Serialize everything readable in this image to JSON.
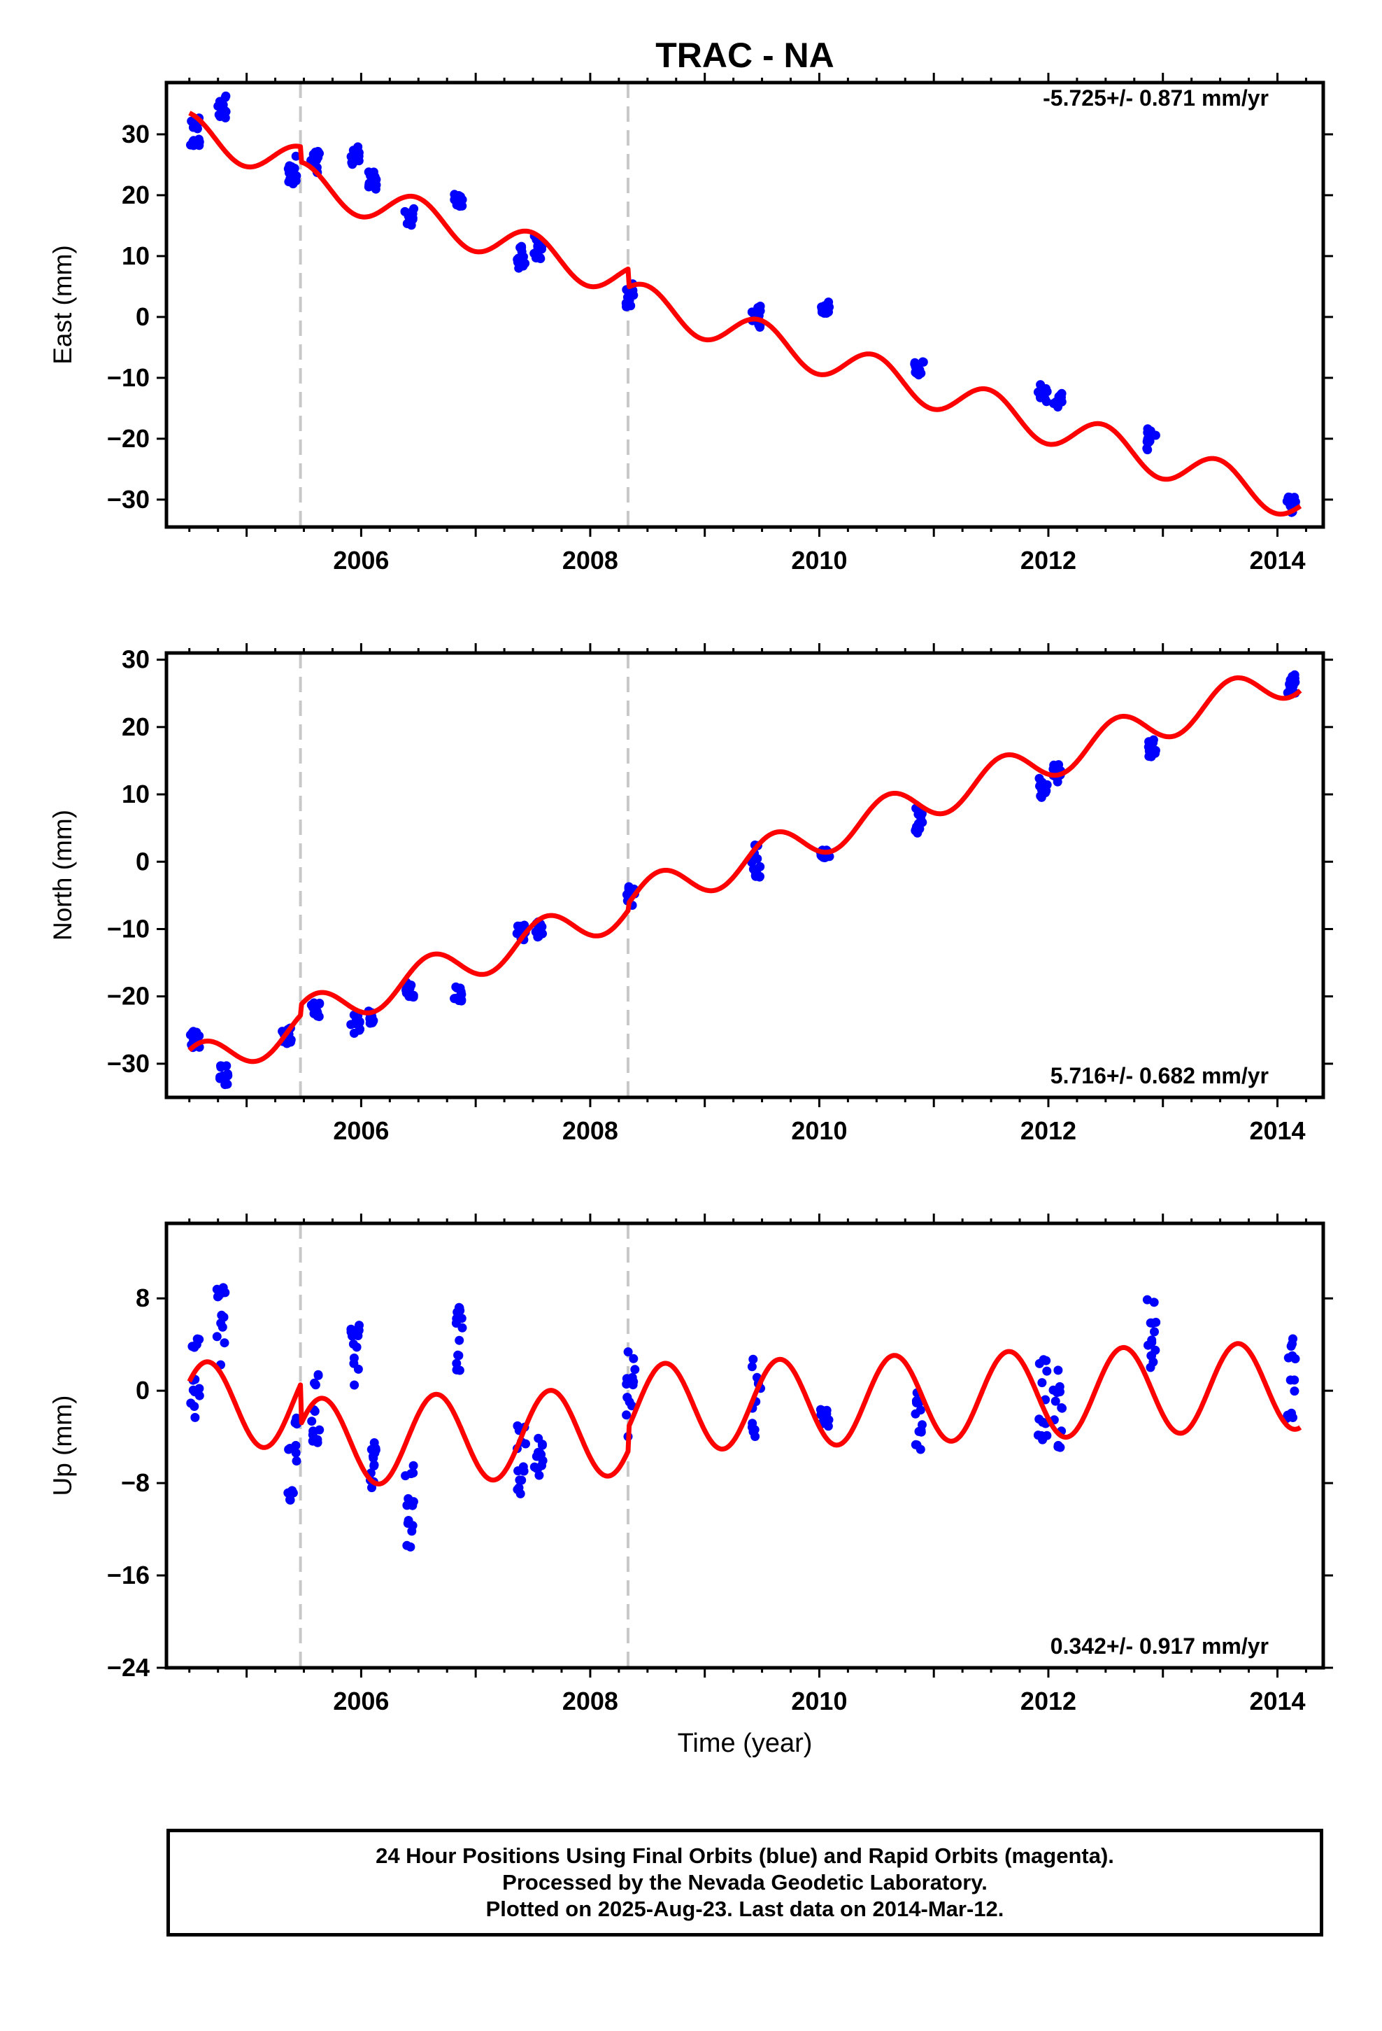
{
  "chart_data": {
    "type": "scatter",
    "title": "TRAC - NA",
    "xlabel": "Time (year)",
    "x_ticks": [
      "2006",
      "2008",
      "2010",
      "2012",
      "2014"
    ],
    "xlim": [
      2004.3,
      2014.4
    ],
    "vlines": [
      2005.47,
      2008.33
    ],
    "colors": {
      "data": "#0000ff",
      "model": "#ff0000",
      "vline": "#c8c8c8"
    },
    "panels": [
      {
        "ylabel": "East (mm)",
        "ylim": [
          -34.5,
          38.5
        ],
        "y_ticks": [
          30,
          20,
          10,
          0,
          -10,
          -20,
          -30
        ],
        "rate": "-5.725+/- 0.871 mm/yr",
        "rate_position": "top-right",
        "slope": -5.725,
        "model_offsets": [
          [
            2004.3,
            0
          ],
          [
            2005.47,
            -2.5
          ],
          [
            2008.33,
            -3
          ]
        ],
        "model_anchor": [
          2004.5,
          33.5
        ],
        "annual_amp": 3.0,
        "annual_phase": 1.7,
        "scatter_clusters": [
          [
            2004.55,
            30.5,
            2.5
          ],
          [
            2004.78,
            34.5,
            2.0
          ],
          [
            2005.4,
            24.0,
            2.5
          ],
          [
            2005.6,
            26.0,
            2.5
          ],
          [
            2005.95,
            26.5,
            1.5
          ],
          [
            2006.1,
            22.5,
            1.5
          ],
          [
            2006.42,
            16.5,
            1.5
          ],
          [
            2006.85,
            19.0,
            1.2
          ],
          [
            2007.4,
            10.0,
            2.0
          ],
          [
            2007.55,
            11.5,
            2.0
          ],
          [
            2008.35,
            3.5,
            2.0
          ],
          [
            2009.45,
            0.0,
            1.8
          ],
          [
            2010.05,
            1.5,
            1.0
          ],
          [
            2010.87,
            -8.5,
            1.5
          ],
          [
            2011.95,
            -12.5,
            1.5
          ],
          [
            2012.08,
            -13.5,
            1.5
          ],
          [
            2012.9,
            -20.0,
            2.0
          ],
          [
            2014.12,
            -31.0,
            1.5
          ]
        ]
      },
      {
        "ylabel": "North (mm)",
        "ylim": [
          -35.0,
          31.0
        ],
        "y_ticks": [
          30,
          20,
          10,
          0,
          -10,
          -20,
          -30
        ],
        "rate": "5.716+/- 0.682 mm/yr",
        "rate_position": "bottom-right",
        "slope": 5.716,
        "model_offsets": [
          [
            2004.3,
            0
          ],
          [
            2005.47,
            1.5
          ],
          [
            2008.33,
            1.0
          ]
        ],
        "model_anchor": [
          2004.5,
          -28.0
        ],
        "annual_amp": 2.8,
        "annual_phase": 0.9,
        "scatter_clusters": [
          [
            2004.55,
            -26.5,
            1.8
          ],
          [
            2004.8,
            -32.0,
            2.0
          ],
          [
            2005.35,
            -26.0,
            1.5
          ],
          [
            2005.6,
            -22.0,
            1.2
          ],
          [
            2005.95,
            -24.0,
            1.5
          ],
          [
            2006.1,
            -23.0,
            1.0
          ],
          [
            2006.42,
            -19.0,
            1.5
          ],
          [
            2006.85,
            -19.5,
            1.2
          ],
          [
            2007.4,
            -10.5,
            1.2
          ],
          [
            2007.55,
            -10.0,
            1.2
          ],
          [
            2008.35,
            -5.0,
            1.5
          ],
          [
            2009.45,
            0.0,
            2.5
          ],
          [
            2010.05,
            1.0,
            0.8
          ],
          [
            2010.87,
            6.0,
            2.0
          ],
          [
            2011.95,
            11.0,
            1.5
          ],
          [
            2012.08,
            13.0,
            1.5
          ],
          [
            2012.9,
            17.0,
            1.5
          ],
          [
            2014.12,
            26.5,
            1.6
          ]
        ]
      },
      {
        "ylabel": "Up (mm)",
        "ylim": [
          -24.0,
          14.5
        ],
        "y_ticks": [
          8,
          0,
          -8,
          -16,
          -24
        ],
        "y_tick_labels": [
          "8",
          "0",
          "−8",
          "−16",
          "−24"
        ],
        "rate": "0.342+/- 0.917 mm/yr",
        "rate_position": "bottom-right",
        "slope": 0.342,
        "model_offsets": [
          [
            2004.3,
            0
          ],
          [
            2005.47,
            -3.5
          ],
          [
            2008.33,
            2.0
          ]
        ],
        "model_anchor": [
          2004.5,
          0.8
        ],
        "annual_amp": 3.8,
        "annual_phase": 0.6,
        "scatter_clusters": [
          [
            2004.55,
            1.0,
            3.5
          ],
          [
            2004.78,
            5.5,
            3.5
          ],
          [
            2005.4,
            -6.0,
            4.0
          ],
          [
            2005.6,
            -1.5,
            3.0
          ],
          [
            2005.95,
            3.0,
            3.0
          ],
          [
            2006.1,
            -6.5,
            2.0
          ],
          [
            2006.42,
            -10.0,
            4.0
          ],
          [
            2006.85,
            4.5,
            3.0
          ],
          [
            2007.4,
            -6.0,
            3.0
          ],
          [
            2007.55,
            -5.5,
            2.0
          ],
          [
            2008.35,
            -0.5,
            4.0
          ],
          [
            2009.45,
            -0.5,
            3.5
          ],
          [
            2010.05,
            -2.3,
            0.8
          ],
          [
            2010.87,
            -2.5,
            3.0
          ],
          [
            2011.95,
            -1.0,
            4.0
          ],
          [
            2012.08,
            -1.0,
            4.0
          ],
          [
            2012.9,
            5.0,
            3.0
          ],
          [
            2014.12,
            0.5,
            4.0
          ]
        ]
      }
    ]
  },
  "footer": {
    "line1": "24 Hour Positions Using Final Orbits (blue) and Rapid Orbits (magenta).",
    "line2": "Processed by the Nevada Geodetic Laboratory.",
    "line3": "Plotted on 2025-Aug-23. Last data on 2014-Mar-12."
  }
}
